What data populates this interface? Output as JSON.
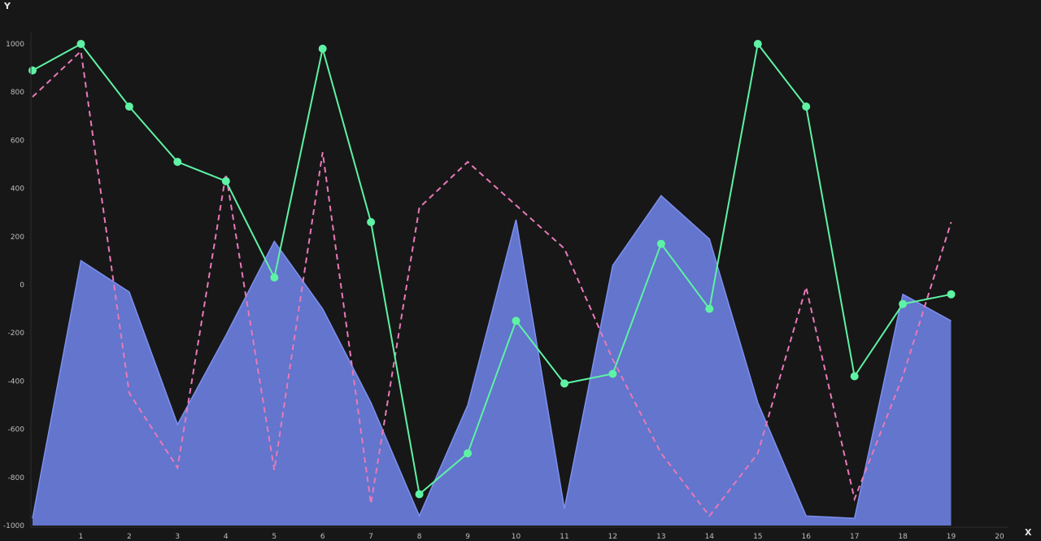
{
  "chart_data": {
    "type": "line",
    "xlabel": "X",
    "ylabel": "Y",
    "xlim": [
      0,
      20
    ],
    "ylim": [
      -1000,
      1000
    ],
    "x_ticks": [
      1,
      2,
      3,
      4,
      5,
      6,
      7,
      8,
      9,
      10,
      11,
      12,
      13,
      14,
      15,
      16,
      17,
      18,
      19,
      20
    ],
    "y_ticks": [
      -1000,
      -800,
      -600,
      -400,
      -200,
      0,
      200,
      400,
      600,
      800,
      1000
    ],
    "grid": false,
    "legend": "none",
    "series": [
      {
        "style": "area",
        "color": "#6b7fe0",
        "x": [
          0,
          1,
          2,
          3,
          4,
          5,
          6,
          7,
          8,
          9,
          10,
          11,
          12,
          13,
          14,
          15,
          16,
          17,
          18,
          19
        ],
        "values": [
          -970,
          100,
          -30,
          -580,
          -210,
          180,
          -100,
          -490,
          -960,
          -500,
          270,
          -930,
          80,
          370,
          190,
          -490,
          -960,
          -970,
          -40,
          -150
        ]
      },
      {
        "style": "dashed-line",
        "color": "#e879b9",
        "x": [
          0,
          1,
          2,
          3,
          4,
          5,
          6,
          7,
          8,
          9,
          10,
          11,
          12,
          13,
          14,
          15,
          16,
          17,
          18,
          19
        ],
        "values": [
          780,
          970,
          -450,
          -760,
          460,
          -770,
          550,
          -910,
          320,
          510,
          330,
          150,
          -310,
          -700,
          -960,
          -700,
          -10,
          -890,
          -380,
          260
        ]
      },
      {
        "style": "line-markers",
        "color": "#5ef2a4",
        "x": [
          0,
          1,
          2,
          3,
          4,
          5,
          6,
          7,
          8,
          9,
          10,
          11,
          12,
          13,
          14,
          15,
          16,
          17,
          18,
          19
        ],
        "values": [
          890,
          1000,
          740,
          510,
          430,
          30,
          980,
          260,
          -870,
          -700,
          -150,
          -410,
          -370,
          170,
          -100,
          1000,
          740,
          -380,
          -80,
          -40
        ]
      }
    ]
  }
}
